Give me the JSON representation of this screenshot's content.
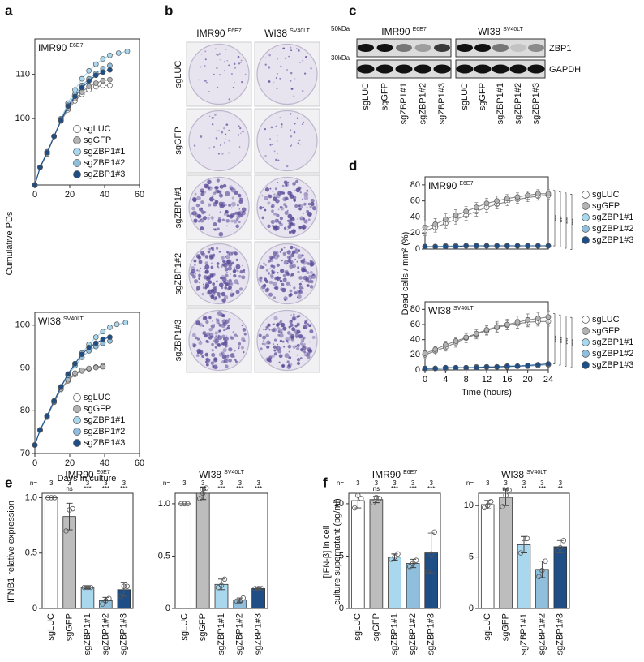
{
  "panel_labels": [
    "a",
    "b",
    "c",
    "d",
    "e",
    "f"
  ],
  "colony_assay": {
    "columns": [
      {
        "title": "IMR90",
        "title_sup": "E6E7"
      },
      {
        "title": "WI38",
        "title_sup": "SV40LT"
      }
    ],
    "rows": [
      "sgLUC",
      "sgGFP",
      "sgZBP1#1",
      "sgZBP1#2",
      "sgZBP1#3"
    ]
  },
  "western_blot": {
    "panels": [
      {
        "title": "IMR90",
        "title_sup": "E6E7"
      },
      {
        "title": "WI38",
        "title_sup": "SV40LT"
      }
    ],
    "markers": [
      "50kDa",
      "30kDa"
    ],
    "proteins": [
      "ZBP1",
      "GAPDH"
    ],
    "lanes": [
      "sgLUC",
      "sgGFP",
      "sgZBP1#1",
      "sgZBP1#2",
      "sgZBP1#3"
    ]
  },
  "chart_data": [
    {
      "type": "line",
      "title": "IMR90",
      "title_sup": "E6E7",
      "ylabel": "Cumulative PDs",
      "xlim": [
        0,
        60
      ],
      "xticks": [
        0,
        20,
        40,
        60
      ],
      "ylim": [
        85,
        118
      ],
      "yticks": [
        100,
        110
      ],
      "legend": "lower right",
      "series": [
        {
          "name": "sgLUC",
          "color": "#ffffff",
          "x": [
            0,
            3,
            7,
            11,
            15,
            19,
            23,
            27,
            31,
            35,
            39,
            43
          ],
          "values": [
            85,
            89,
            92,
            96,
            99.5,
            102,
            104,
            105.5,
            106.5,
            107.2,
            107.5,
            107.5
          ]
        },
        {
          "name": "sgGFP",
          "color": "#b3b3b3",
          "x": [
            0,
            3,
            7,
            11,
            15,
            19,
            23,
            27,
            31,
            35,
            39,
            43
          ],
          "values": [
            85,
            89,
            92,
            96,
            99.5,
            102.3,
            104.5,
            106,
            107.3,
            108,
            108.6,
            108.8
          ]
        },
        {
          "name": "sgZBP1#1",
          "color": "#a9d8ee",
          "x": [
            0,
            3,
            7,
            11,
            15,
            19,
            23,
            27,
            31,
            35,
            39,
            43,
            48,
            53
          ],
          "values": [
            85,
            89,
            92.5,
            96,
            100,
            103.5,
            106.5,
            109,
            110.8,
            112.3,
            113.5,
            114.3,
            114.8,
            115.2
          ]
        },
        {
          "name": "sgZBP1#2",
          "color": "#8fbfdc",
          "x": [
            0,
            3,
            7,
            11,
            15,
            19,
            23,
            27,
            31,
            35,
            39,
            43
          ],
          "values": [
            85,
            89,
            92.5,
            96,
            99.8,
            103,
            105.5,
            107.5,
            109,
            110.2,
            111.3,
            112
          ]
        },
        {
          "name": "sgZBP1#3",
          "color": "#1f4e86",
          "x": [
            0,
            3,
            7,
            11,
            15,
            19,
            23,
            27,
            31,
            35,
            39,
            43
          ],
          "values": [
            85,
            89,
            92.3,
            96,
            99.6,
            102.8,
            105,
            107,
            108.5,
            109.8,
            110.5,
            111
          ]
        }
      ]
    },
    {
      "type": "line",
      "title": "WI38",
      "title_sup": "SV40LT",
      "xlabel": "Days in culture",
      "xlim": [
        0,
        60
      ],
      "xticks": [
        0,
        20,
        40,
        60
      ],
      "ylim": [
        70,
        103
      ],
      "yticks": [
        70,
        80,
        90,
        100
      ],
      "legend": "lower right",
      "series": [
        {
          "name": "sgLUC",
          "color": "#ffffff",
          "x": [
            0,
            3,
            7,
            11,
            15,
            19,
            23,
            27,
            31,
            35,
            39
          ],
          "values": [
            72,
            75.5,
            78.5,
            82,
            85,
            87,
            88.5,
            89.3,
            89.8,
            90.2,
            90.5
          ]
        },
        {
          "name": "sgGFP",
          "color": "#b3b3b3",
          "x": [
            0,
            3,
            7,
            11,
            15,
            19,
            23,
            27,
            31,
            35,
            39
          ],
          "values": [
            72,
            75.5,
            78.5,
            82,
            85,
            87.2,
            88.8,
            89.5,
            89.9,
            90.1,
            90.3
          ]
        },
        {
          "name": "sgZBP1#1",
          "color": "#a9d8ee",
          "x": [
            0,
            3,
            7,
            11,
            15,
            19,
            23,
            27,
            31,
            35,
            39,
            43,
            47,
            52
          ],
          "values": [
            72,
            75.5,
            78.8,
            82.3,
            85.5,
            88.5,
            91,
            93.5,
            95.5,
            97.2,
            98.5,
            99.5,
            100.2,
            100.6
          ]
        },
        {
          "name": "sgZBP1#2",
          "color": "#8fbfdc",
          "x": [
            0,
            3,
            7,
            11,
            15,
            19,
            23,
            27,
            31,
            35,
            39,
            43
          ],
          "values": [
            72,
            75.5,
            78.8,
            82.2,
            85.5,
            88.3,
            90.5,
            92.5,
            94,
            95,
            95.8,
            96.3
          ]
        },
        {
          "name": "sgZBP1#3",
          "color": "#1f4e86",
          "x": [
            0,
            3,
            7,
            11,
            15,
            19,
            23,
            27,
            31,
            35,
            39,
            43
          ],
          "values": [
            72,
            75.5,
            78.8,
            82.3,
            85.6,
            88.6,
            91,
            93.2,
            94.8,
            95.8,
            96.7,
            97.2
          ]
        }
      ]
    },
    {
      "type": "line",
      "title": "IMR90",
      "title_sup": "E6E7",
      "ylabel": "Dead cells / mm² (%)",
      "x": [
        0,
        2,
        4,
        6,
        8,
        10,
        12,
        14,
        16,
        18,
        20,
        22,
        24
      ],
      "xlim": [
        0,
        24
      ],
      "ylim": [
        0,
        90
      ],
      "yticks": [
        0,
        20,
        40,
        60,
        80
      ],
      "legend": "right",
      "significance": [
        "****",
        "****",
        "****",
        "****"
      ],
      "series": [
        {
          "name": "sgLUC",
          "color": "#ffffff",
          "values": [
            23,
            27,
            32,
            37,
            42,
            47,
            52,
            56,
            59,
            62,
            64,
            66,
            67
          ],
          "errors": [
            6,
            6,
            6,
            6,
            6,
            6,
            6,
            6,
            5,
            5,
            5,
            5,
            5
          ]
        },
        {
          "name": "sgGFP",
          "color": "#b3b3b3",
          "values": [
            27,
            31,
            37,
            42,
            47,
            52,
            57,
            60,
            63,
            65,
            67,
            69,
            69
          ],
          "errors": [
            8,
            7,
            7,
            7,
            6,
            6,
            6,
            6,
            5,
            5,
            5,
            5,
            5
          ]
        },
        {
          "name": "sgZBP1#1",
          "color": "#a9d8ee",
          "values": [
            3,
            3,
            4,
            4,
            4,
            4,
            4,
            4,
            4,
            4,
            4,
            4,
            4
          ]
        },
        {
          "name": "sgZBP1#2",
          "color": "#8fbfdc",
          "values": [
            3,
            3,
            3,
            4,
            4,
            4,
            4,
            4,
            4,
            4,
            4,
            4,
            4
          ]
        },
        {
          "name": "sgZBP1#3",
          "color": "#1f4e86",
          "values": [
            3,
            3,
            3,
            3,
            4,
            4,
            4,
            4,
            4,
            4,
            4,
            4,
            4
          ]
        }
      ]
    },
    {
      "type": "line",
      "title": "WI38",
      "title_sup": "SV40LT",
      "xlabel": "Time (hours)",
      "x": [
        0,
        2,
        4,
        6,
        8,
        10,
        12,
        14,
        16,
        18,
        20,
        22,
        24
      ],
      "xlim": [
        0,
        24
      ],
      "xticks": [
        0,
        4,
        8,
        12,
        16,
        20,
        24
      ],
      "ylim": [
        0,
        90
      ],
      "yticks": [
        0,
        20,
        40,
        60,
        80
      ],
      "legend": "right",
      "significance": [
        "****",
        "****",
        "****",
        "****"
      ],
      "series": [
        {
          "name": "sgLUC",
          "color": "#ffffff",
          "values": [
            20,
            25,
            30,
            36,
            42,
            47,
            52,
            56,
            59,
            61,
            63,
            64,
            64
          ],
          "errors": [
            5,
            5,
            5,
            6,
            6,
            6,
            6,
            6,
            6,
            6,
            6,
            6,
            6
          ]
        },
        {
          "name": "sgGFP",
          "color": "#b3b3b3",
          "values": [
            22,
            27,
            33,
            38,
            43,
            48,
            53,
            57,
            60,
            63,
            66,
            68,
            70
          ],
          "errors": [
            4,
            4,
            5,
            5,
            6,
            6,
            6,
            7,
            7,
            8,
            8,
            8,
            8
          ]
        },
        {
          "name": "sgZBP1#1",
          "color": "#a9d8ee",
          "values": [
            2,
            2,
            3,
            3,
            3,
            4,
            4,
            4,
            5,
            5,
            6,
            6,
            7
          ]
        },
        {
          "name": "sgZBP1#2",
          "color": "#8fbfdc",
          "values": [
            2,
            2,
            2,
            3,
            3,
            3,
            4,
            4,
            4,
            5,
            5,
            6,
            7
          ]
        },
        {
          "name": "sgZBP1#3",
          "color": "#1f4e86",
          "values": [
            2,
            2,
            3,
            3,
            3,
            3,
            4,
            4,
            5,
            5,
            6,
            7,
            8
          ]
        }
      ]
    },
    {
      "type": "bar",
      "title": "IMR90",
      "title_sup": "E6E7",
      "ylabel": "IFNB1 relative expression",
      "categories": [
        "sgLUC",
        "sgGFP",
        "sgZBP1#1",
        "sgZBP1#2",
        "sgZBP1#3"
      ],
      "values": [
        1,
        0.83,
        0.19,
        0.07,
        0.17
      ],
      "errors": [
        0,
        0.12,
        0.01,
        0.03,
        0.06
      ],
      "replicates": [
        [
          1,
          1,
          1
        ],
        [
          0.7,
          0.89,
          0.9
        ],
        [
          0.19,
          0.19,
          0.19
        ],
        [
          0.04,
          0.07,
          0.09
        ],
        [
          0.11,
          0.2,
          0.2
        ]
      ],
      "colors": [
        "#ffffff",
        "#bdbdbd",
        "#a9d8ee",
        "#8fbfdc",
        "#1f4e86"
      ],
      "n_label": "n=",
      "n": [
        3,
        3,
        3,
        3,
        3
      ],
      "significance": [
        null,
        "ns",
        "***",
        "***",
        "***"
      ],
      "ylim": [
        0,
        1.04
      ],
      "yticks": [
        0,
        0.5,
        {
          "value": 1,
          "label": "1.0"
        }
      ]
    },
    {
      "type": "bar",
      "title": "WI38",
      "title_sup": "SV40LT",
      "categories": [
        "sgLUC",
        "sgGFP",
        "sgZBP1#1",
        "sgZBP1#2",
        "sgZBP1#3"
      ],
      "values": [
        1,
        1.1,
        0.23,
        0.08,
        0.19
      ],
      "errors": [
        0,
        0.06,
        0.05,
        0.02,
        0.01
      ],
      "replicates": [
        [
          1,
          1,
          1
        ],
        [
          1.05,
          1.1,
          1.15
        ],
        [
          0.2,
          0.22,
          0.28
        ],
        [
          0.07,
          0.07,
          0.1
        ],
        [
          0.19,
          0.19,
          0.19
        ]
      ],
      "colors": [
        "#ffffff",
        "#bdbdbd",
        "#a9d8ee",
        "#8fbfdc",
        "#1f4e86"
      ],
      "n_label": "n=",
      "n": [
        3,
        3,
        3,
        3,
        3
      ],
      "significance": [
        null,
        "ns",
        "***",
        "***",
        "***"
      ],
      "ylim": [
        0,
        1.1
      ],
      "yticks": [
        0,
        0.5,
        {
          "value": 1,
          "label": "1.0"
        }
      ]
    },
    {
      "type": "bar",
      "title": "IMR90",
      "title_sup": "E6E7",
      "ylabel": [
        "[IFN-β] in cell",
        "culture supernatant (pg/ml)"
      ],
      "categories": [
        "sgLUC",
        "sgGFP",
        "sgZBP1#1",
        "sgZBP1#2",
        "sgZBP1#3"
      ],
      "values": [
        10.3,
        10.4,
        4.9,
        4.3,
        5.3
      ],
      "errors": [
        0.7,
        0.3,
        0.3,
        0.4,
        1.9
      ],
      "replicates": [
        [
          9.6,
          10.8,
          10.5
        ],
        [
          10.1,
          10.6,
          10.5
        ],
        [
          4.7,
          4.9,
          5.2
        ],
        [
          4,
          4.3,
          4.6
        ],
        [
          3.5,
          5.2,
          7.3
        ]
      ],
      "colors": [
        "#ffffff",
        "#bdbdbd",
        "#a9d8ee",
        "#8fbfdc",
        "#1f4e86"
      ],
      "n_label": "n=",
      "n": [
        3,
        3,
        3,
        3,
        3
      ],
      "significance": [
        null,
        "ns",
        "***",
        "***",
        "***"
      ],
      "ylim": [
        0,
        11
      ],
      "yticks": [
        0,
        5,
        10
      ]
    },
    {
      "type": "bar",
      "title": "WI38",
      "title_sup": "SV40LT",
      "categories": [
        "sgLUC",
        "sgGFP",
        "sgZBP1#1",
        "sgZBP1#2",
        "sgZBP1#3"
      ],
      "values": [
        10.1,
        10.8,
        6.2,
        3.8,
        6
      ],
      "errors": [
        0.4,
        0.8,
        0.8,
        0.8,
        0.6
      ],
      "replicates": [
        [
          9.8,
          10,
          10.4
        ],
        [
          9.9,
          11,
          11.5
        ],
        [
          5.4,
          6.4,
          6.8
        ],
        [
          3.1,
          3.7,
          4.6
        ],
        [
          5.6,
          5.9,
          6.6
        ]
      ],
      "colors": [
        "#ffffff",
        "#bdbdbd",
        "#a9d8ee",
        "#8fbfdc",
        "#1f4e86"
      ],
      "n_label": "n=",
      "n": [
        3,
        3,
        3,
        3,
        3
      ],
      "significance": [
        null,
        "ns",
        "**",
        "***",
        "**"
      ],
      "ylim": [
        0,
        11.2
      ],
      "yticks": [
        0,
        5,
        10
      ]
    }
  ]
}
